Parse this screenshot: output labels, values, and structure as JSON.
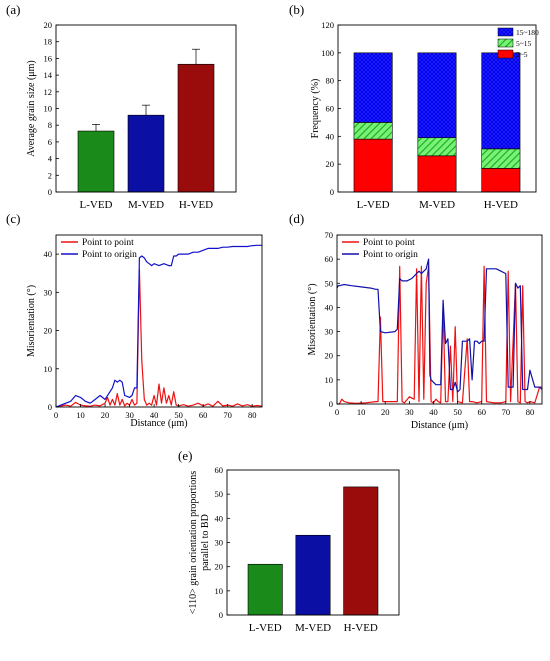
{
  "chart_data": [
    {
      "panel_label": "(a)",
      "type": "bar",
      "categories": [
        "L-VED",
        "M-VED",
        "H-VED"
      ],
      "values": [
        7.3,
        9.2,
        15.3
      ],
      "errors": [
        0.8,
        1.2,
        1.8
      ],
      "colors": [
        "#1a8a1a",
        "#0b0fa3",
        "#9a0b0b"
      ],
      "ylabel": "Average grain size (μm)",
      "xlabel": "",
      "ylim": [
        0,
        20
      ],
      "yticks": [
        "0",
        "2",
        "4",
        "6",
        "8",
        "10",
        "12",
        "14",
        "16",
        "18",
        "20"
      ]
    },
    {
      "panel_label": "(b)",
      "type": "bar",
      "stacked": true,
      "categories": [
        "L-VED",
        "M-VED",
        "H-VED"
      ],
      "series": [
        {
          "name": "2~5",
          "values": [
            38,
            26,
            17
          ],
          "color": "#ff0000"
        },
        {
          "name": "5~15",
          "values": [
            12,
            13,
            14
          ],
          "color": "#22dd22",
          "pattern": "hatch"
        },
        {
          "name": "15~180",
          "values": [
            50,
            61,
            69
          ],
          "color": "#0000ee",
          "pattern": "crosshatch"
        }
      ],
      "ylabel": "Frequency (%)",
      "xlabel": "",
      "ylim": [
        0,
        120
      ],
      "yticks": [
        "0",
        "20",
        "40",
        "60",
        "80",
        "100",
        "120"
      ],
      "legend_position": "top-right"
    },
    {
      "panel_label": "(c)",
      "type": "line",
      "xlabel": "Distance (μm)",
      "ylabel": "Misorientation (°)",
      "xlim": [
        0,
        84
      ],
      "ylim": [
        0,
        45
      ],
      "xticks": [
        "0",
        "10",
        "20",
        "30",
        "40",
        "50",
        "60",
        "70",
        "80"
      ],
      "yticks": [
        "0",
        "10",
        "20",
        "30",
        "40"
      ],
      "legend_position": "top-left",
      "series": [
        {
          "name": "Point to point",
          "color": "#ee1111",
          "x": [
            0,
            2,
            4,
            6,
            8,
            10,
            12,
            14,
            16,
            18,
            20,
            21,
            22,
            23,
            24,
            25,
            26,
            27,
            28,
            29,
            30,
            31,
            32,
            33,
            34,
            35,
            36,
            37,
            38,
            39,
            40,
            41,
            42,
            43,
            44,
            45,
            46,
            47,
            48,
            49,
            50,
            52,
            54,
            56,
            58,
            60,
            62,
            64,
            66,
            68,
            70,
            72,
            74,
            76,
            78,
            80,
            82,
            84
          ],
          "y": [
            0,
            0.3,
            0.5,
            0.2,
            1.2,
            0.5,
            0.3,
            0.2,
            0.5,
            0.3,
            1,
            2.5,
            0.5,
            2,
            0.5,
            3.5,
            0.5,
            2,
            0.3,
            1,
            0.5,
            2,
            0.5,
            1,
            36,
            12,
            2,
            0.5,
            1,
            0.5,
            3,
            0.5,
            6,
            1,
            5,
            1,
            3,
            0.5,
            4,
            0.5,
            0.3,
            0.6,
            0.2,
            0.5,
            1,
            0.3,
            0.8,
            0.2,
            1.5,
            0.3,
            0.5,
            0.2,
            0.8,
            0.3,
            0.6,
            0.2,
            0.4,
            0.2
          ]
        },
        {
          "name": "Point to origin",
          "color": "#1111cc",
          "x": [
            0,
            2,
            4,
            6,
            8,
            10,
            12,
            14,
            16,
            18,
            20,
            22,
            23,
            24,
            25,
            26,
            27,
            28,
            30,
            31,
            32,
            33,
            34,
            35,
            36,
            37,
            38,
            39,
            40,
            42,
            44,
            46,
            47,
            48,
            49,
            50,
            52,
            54,
            56,
            58,
            60,
            62,
            64,
            66,
            68,
            70,
            72,
            74,
            76,
            78,
            80,
            82,
            84
          ],
          "y": [
            0,
            0.5,
            1,
            1.5,
            3,
            2.5,
            1.5,
            1,
            2,
            3,
            2,
            4,
            5,
            7,
            6.5,
            7,
            6.5,
            3,
            2.5,
            3,
            5,
            5,
            39,
            39.5,
            39,
            38,
            37.5,
            37,
            37.5,
            37,
            37.5,
            37,
            37,
            39.5,
            39.5,
            40,
            40,
            40,
            40.5,
            40.5,
            41,
            41.5,
            41.5,
            41.5,
            41.8,
            41.8,
            42,
            42,
            42,
            42,
            42.2,
            42.3,
            42.3
          ]
        }
      ]
    },
    {
      "panel_label": "(d)",
      "type": "line",
      "xlabel": "Distance (μm)",
      "ylabel": "Misorientation (°)",
      "xlim": [
        0,
        85
      ],
      "ylim": [
        0,
        70
      ],
      "xticks": [
        "0",
        "10",
        "20",
        "30",
        "40",
        "50",
        "60",
        "70",
        "80"
      ],
      "yticks": [
        "0",
        "10",
        "20",
        "30",
        "40",
        "50",
        "60",
        "70"
      ],
      "legend_position": "top-left",
      "series": [
        {
          "name": "Point to point",
          "color": "#ee1111",
          "x": [
            0,
            1,
            2,
            3,
            5,
            8,
            12,
            16,
            17,
            18,
            19,
            22,
            25,
            26,
            27,
            28,
            30,
            32,
            33,
            34,
            35,
            36,
            37,
            38,
            39,
            40,
            41,
            42,
            43,
            44,
            45,
            46,
            47,
            48,
            49,
            50,
            52,
            54,
            55,
            56,
            58,
            60,
            61,
            62,
            65,
            68,
            70,
            71,
            72,
            74,
            75,
            76,
            77,
            78,
            79,
            80,
            82,
            84,
            85
          ],
          "y": [
            0,
            0,
            2,
            1,
            0.5,
            0.3,
            0.5,
            1,
            1,
            36,
            1,
            1,
            1,
            57,
            1,
            0.5,
            3,
            2,
            56,
            1,
            57,
            2,
            50,
            57,
            1,
            0.5,
            2,
            1,
            0.5,
            40,
            1,
            1,
            24,
            1,
            32,
            1,
            0.5,
            27,
            1,
            1,
            0.5,
            1,
            57,
            1,
            0.5,
            0.5,
            1,
            55,
            1,
            50,
            1,
            0.5,
            49,
            1,
            0.5,
            1,
            0.5,
            7,
            7
          ]
        },
        {
          "name": "Point to origin",
          "color": "#1111aa",
          "x": [
            0,
            0.5,
            1,
            3,
            6,
            10,
            14,
            16,
            17,
            18,
            20,
            24,
            25,
            26,
            27,
            29,
            31,
            33,
            34,
            35,
            36,
            37,
            38,
            38.5,
            39,
            40,
            41,
            43,
            44,
            45,
            46,
            47,
            48,
            49,
            50,
            51,
            52,
            54,
            55,
            56,
            57,
            58,
            59,
            60,
            61,
            62,
            64,
            66,
            68,
            70,
            71,
            72,
            73,
            74,
            75,
            76,
            77,
            78,
            79,
            80,
            82,
            84,
            85
          ],
          "y": [
            48,
            49,
            49,
            49.5,
            49,
            48.5,
            48,
            47.5,
            47.5,
            30,
            29.5,
            30,
            31,
            52,
            51,
            51,
            52,
            54,
            55,
            54,
            55,
            56,
            60,
            12,
            10,
            9,
            8,
            8,
            43,
            25,
            27,
            6,
            6,
            9,
            5,
            6,
            26,
            26,
            27,
            10,
            26,
            26,
            25,
            26,
            26,
            56,
            56,
            56,
            55,
            54,
            7,
            7,
            7,
            50,
            48,
            49,
            6,
            6,
            6,
            14,
            7,
            7,
            6
          ]
        }
      ]
    },
    {
      "panel_label": "(e)",
      "type": "bar",
      "categories": [
        "L-VED",
        "M-VED",
        "H-VED"
      ],
      "values": [
        21,
        33,
        53
      ],
      "colors": [
        "#1a8a1a",
        "#0b0fa3",
        "#9a0b0b"
      ],
      "ylabel": "<110> grain orientation proportions parallel to BD",
      "ylabel_lines": [
        "<110> grain orientation proportions",
        "parallel to BD"
      ],
      "xlabel": "",
      "ylim": [
        0,
        60
      ],
      "yticks": [
        "0",
        "10",
        "20",
        "30",
        "40",
        "50",
        "60"
      ]
    }
  ]
}
